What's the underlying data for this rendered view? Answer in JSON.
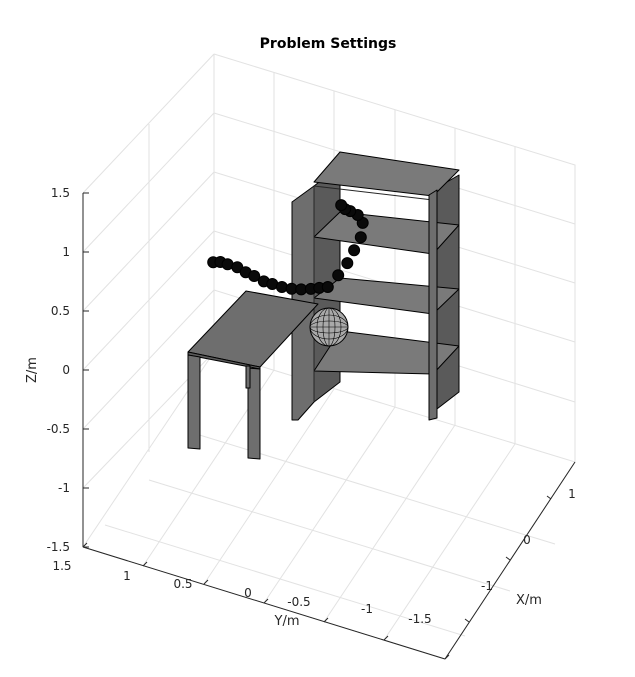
{
  "chart_data": {
    "type": "scatter",
    "title": "Problem Settings",
    "xlabel": "X/m",
    "ylabel": "Y/m",
    "zlabel": "Z/m",
    "xlim": [
      -1.5,
      1.5
    ],
    "ylim": [
      -1.5,
      1.5
    ],
    "zlim": [
      -1.5,
      1.5
    ],
    "x_ticks": [
      "-1",
      "0",
      "1"
    ],
    "y_ticks": [
      "1.5",
      "1",
      "0.5",
      "0",
      "-0.5",
      "-1",
      "-1.5"
    ],
    "z_ticks": [
      "1.5",
      "1",
      "0.5",
      "0",
      "-0.5",
      "-1",
      "-1.5"
    ],
    "grid": true,
    "series": [
      {
        "points": [
          [
            0.0,
            0.96,
            0.25
          ],
          [
            0.0,
            0.9,
            0.27
          ],
          [
            0.0,
            0.84,
            0.27
          ],
          [
            0.0,
            0.76,
            0.27
          ],
          [
            0.0,
            0.69,
            0.25
          ],
          [
            0.0,
            0.62,
            0.24
          ],
          [
            0.0,
            0.54,
            0.22
          ],
          [
            0.0,
            0.47,
            0.22
          ],
          [
            0.0,
            0.39,
            0.22
          ],
          [
            0.0,
            0.31,
            0.23
          ],
          [
            0.0,
            0.23,
            0.25
          ],
          [
            0.0,
            0.15,
            0.28
          ],
          [
            0.0,
            0.08,
            0.31
          ],
          [
            0.0,
            0.01,
            0.34
          ],
          [
            0.1,
            -0.04,
            0.4
          ],
          [
            0.2,
            -0.08,
            0.46
          ],
          [
            0.3,
            -0.1,
            0.52
          ],
          [
            0.4,
            -0.12,
            0.58
          ],
          [
            0.5,
            -0.1,
            0.64
          ],
          [
            0.55,
            -0.04,
            0.66
          ],
          [
            0.6,
            0.04,
            0.64
          ],
          [
            0.65,
            0.1,
            0.61
          ],
          [
            0.7,
            0.15,
            0.6
          ]
        ]
      }
    ]
  }
}
